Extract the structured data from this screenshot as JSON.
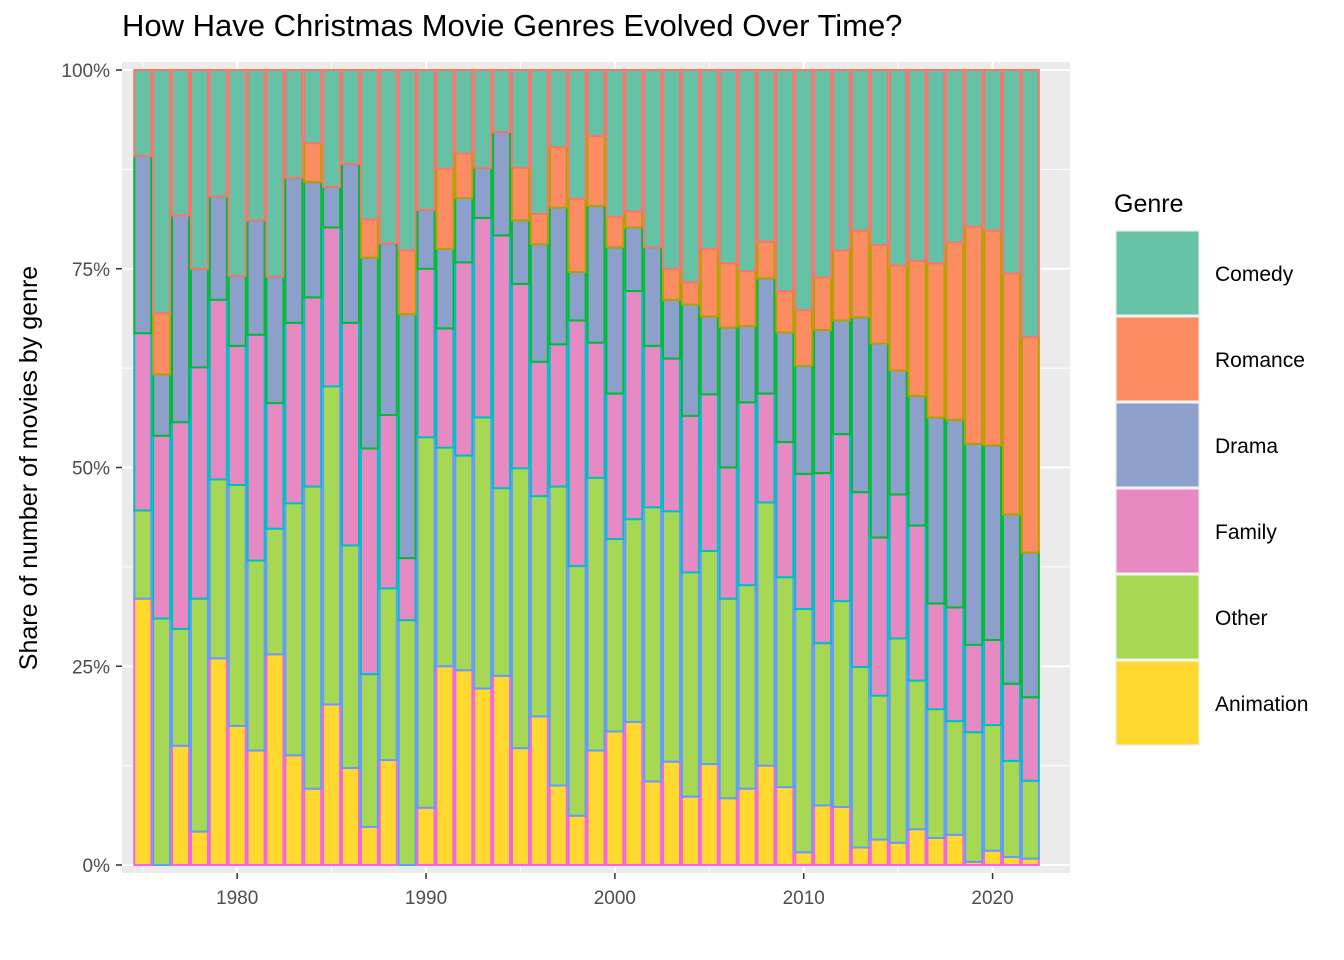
{
  "chart_data": {
    "type": "bar",
    "stacked": "percent",
    "title": "How Have Christmas Movie Genres Evolved Over Time?",
    "xlabel": "",
    "ylabel": "Share of number of movies by genre",
    "xlim": [
      1973.9,
      2024.1
    ],
    "ylim": [
      0,
      100
    ],
    "x_ticks": [
      1980,
      1990,
      2000,
      2010,
      2020
    ],
    "y_ticks": [
      0,
      25,
      50,
      75,
      100
    ],
    "y_tick_labels": [
      "0%",
      "25%",
      "50%",
      "75%",
      "100%"
    ],
    "grid": true,
    "legend": {
      "title": "Genre",
      "position": "right",
      "entries": [
        "Comedy",
        "Romance",
        "Drama",
        "Family",
        "Other",
        "Animation"
      ]
    },
    "colors": {
      "Comedy": "#66c2a5",
      "Romance": "#fc8d62",
      "Drama": "#8da0cb",
      "Family": "#e78ac3",
      "Other": "#a6d854",
      "Animation": "#ffd92f",
      "outline_Comedy": "#f8766d",
      "outline_Romance": "#b79f00",
      "outline_Drama": "#00ba38",
      "outline_Family": "#00bfc4",
      "outline_Other": "#619cff",
      "outline_Animation": "#f564e3",
      "panel": "#ebebeb",
      "grid": "#ffffff"
    },
    "stack_order_bottom_to_top": [
      "Animation",
      "Other",
      "Family",
      "Drama",
      "Romance",
      "Comedy"
    ],
    "years": [
      1975,
      1976,
      1977,
      1978,
      1979,
      1980,
      1981,
      1982,
      1983,
      1984,
      1985,
      1986,
      1987,
      1988,
      1989,
      1990,
      1991,
      1992,
      1993,
      1994,
      1995,
      1996,
      1997,
      1998,
      1999,
      2000,
      2001,
      2002,
      2003,
      2004,
      2005,
      2006,
      2007,
      2008,
      2009,
      2010,
      2011,
      2012,
      2013,
      2014,
      2015,
      2016,
      2017,
      2018,
      2019,
      2020,
      2021,
      2022
    ],
    "series": [
      {
        "name": "Animation",
        "values": [
          33.5,
          0,
          15,
          4.2,
          26,
          17.5,
          14.4,
          26.5,
          13.8,
          9.6,
          20.2,
          12.2,
          4.8,
          13.2,
          0,
          7.2,
          25,
          24.5,
          22.2,
          23.8,
          14.7,
          18.7,
          10,
          6.2,
          14.4,
          16.8,
          18,
          10.5,
          13,
          8.6,
          12.7,
          8.4,
          9.6,
          12.5,
          9.8,
          1.6,
          7.5,
          7.3,
          2.2,
          3.2,
          2.8,
          4.5,
          3.4,
          3.8,
          0.4,
          1.8,
          1,
          0.8
        ]
      },
      {
        "name": "Other",
        "values": [
          11.1,
          31,
          14.7,
          29.3,
          22.5,
          30.3,
          23.9,
          15.8,
          31.7,
          38,
          40,
          28,
          19.2,
          21.6,
          30.8,
          46.6,
          27.5,
          27,
          34.1,
          23.6,
          35.2,
          27.7,
          37.6,
          31.4,
          34.3,
          24.2,
          25.5,
          34.5,
          31.5,
          28.2,
          26.8,
          25.1,
          25.6,
          33.1,
          26.4,
          30.6,
          20.4,
          25.9,
          22.7,
          18.1,
          25.7,
          18.7,
          16.2,
          14.3,
          16.3,
          15.8,
          12.1,
          9.8
        ]
      },
      {
        "name": "Family",
        "values": [
          22.3,
          23,
          26,
          29.1,
          22.6,
          17.5,
          28.4,
          15.8,
          22.7,
          23.8,
          20,
          28,
          28.4,
          21.8,
          7.8,
          21.2,
          15,
          24.3,
          25.1,
          31.8,
          23.2,
          16.9,
          17.9,
          30.9,
          17,
          18.3,
          28.7,
          20.3,
          19.2,
          19.7,
          19.7,
          16.5,
          23,
          13.7,
          17,
          17,
          21.4,
          21,
          22,
          19.9,
          18.1,
          19.5,
          13.3,
          14.3,
          11,
          10.7,
          9.7,
          10.5
        ]
      },
      {
        "name": "Drama",
        "values": [
          22.3,
          7.7,
          26,
          12.4,
          13,
          8.8,
          14.4,
          15.9,
          18.2,
          14.5,
          5.1,
          20,
          24,
          21.6,
          30.7,
          7.4,
          10,
          8.1,
          6.3,
          13,
          8,
          14.8,
          17.2,
          6.1,
          17.2,
          18.4,
          8,
          12.4,
          7.4,
          14,
          9.8,
          17.6,
          9.6,
          14.5,
          13.8,
          13.6,
          18,
          14.3,
          22,
          24.4,
          15.6,
          16.3,
          23.4,
          23.6,
          25.3,
          24.5,
          21.3,
          18.2
        ]
      },
      {
        "name": "Romance",
        "values": [
          0,
          7.7,
          0,
          0,
          0,
          0,
          0,
          0,
          0,
          4.9,
          0,
          0,
          4.8,
          0,
          8,
          0,
          10.1,
          5.6,
          0,
          0,
          6.6,
          3.8,
          7.6,
          9.2,
          8.8,
          3.8,
          2,
          0,
          3.9,
          2.8,
          8.5,
          8.1,
          6.9,
          4.6,
          5.2,
          7,
          6.6,
          8.8,
          10.9,
          12.4,
          13.2,
          17,
          19.4,
          22.3,
          27.3,
          27,
          30.3,
          27.1
        ]
      },
      {
        "name": "Comedy",
        "values": [
          10.8,
          30.6,
          18.3,
          25,
          15.9,
          25.9,
          18.9,
          26,
          13.6,
          9.2,
          14.7,
          11.8,
          18.8,
          21.8,
          22.7,
          17.6,
          12.4,
          10.5,
          12.3,
          7.8,
          12.3,
          18.1,
          9.7,
          16.2,
          8.3,
          18.5,
          17.8,
          22.3,
          25,
          26.7,
          22.5,
          24.3,
          25.3,
          21.6,
          27.8,
          30.2,
          26.1,
          22.7,
          20.2,
          22,
          24.6,
          24,
          24.3,
          21.7,
          19.7,
          20.2,
          25.6,
          33.6
        ]
      }
    ]
  }
}
